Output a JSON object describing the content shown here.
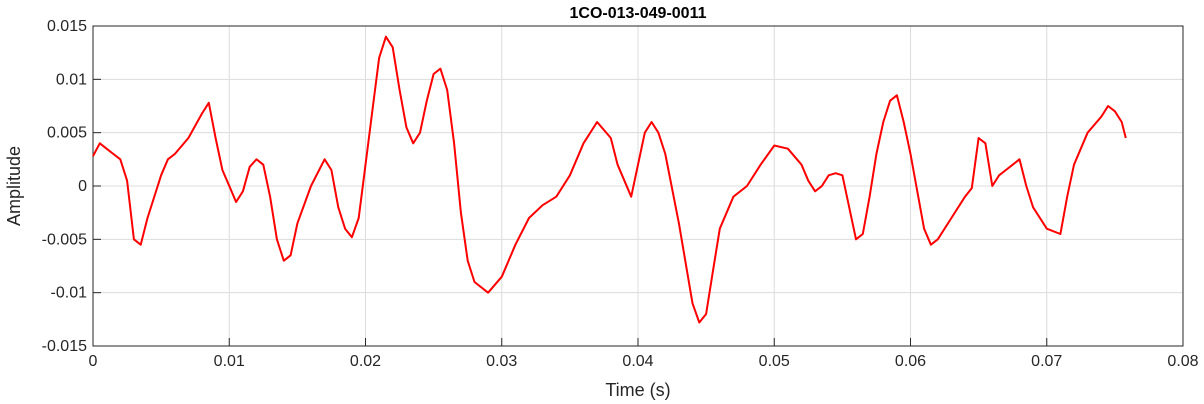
{
  "chart_data": {
    "type": "line",
    "title": "1CO-013-049-0011",
    "xlabel": "Time (s)",
    "ylabel": "Amplitude",
    "xlim": [
      0,
      0.08
    ],
    "ylim": [
      -0.015,
      0.015
    ],
    "grid": true,
    "x_ticks": [
      0,
      0.01,
      0.02,
      0.03,
      0.04,
      0.05,
      0.06,
      0.07,
      0.08
    ],
    "x_tick_labels": [
      "0",
      "0.01",
      "0.02",
      "0.03",
      "0.04",
      "0.05",
      "0.06",
      "0.07",
      "0.08"
    ],
    "y_ticks": [
      -0.015,
      -0.01,
      -0.005,
      0,
      0.005,
      0.01,
      0.015
    ],
    "y_tick_labels": [
      "-0.015",
      "-0.01",
      "-0.005",
      "0",
      "0.005",
      "0.01",
      "0.015"
    ],
    "colors": {
      "series": "#ff0000",
      "grid": "#dcdcdc",
      "axis": "#262626"
    },
    "series": [
      {
        "x": [
          0,
          0.0005,
          0.001,
          0.0015,
          0.002,
          0.0025,
          0.003,
          0.0035,
          0.004,
          0.0045,
          0.005,
          0.0055,
          0.006,
          0.007,
          0.008,
          0.0085,
          0.009,
          0.0095,
          0.01,
          0.0105,
          0.011,
          0.0115,
          0.012,
          0.0125,
          0.013,
          0.0135,
          0.014,
          0.0145,
          0.015,
          0.016,
          0.017,
          0.0175,
          0.018,
          0.0185,
          0.019,
          0.0195,
          0.02,
          0.0205,
          0.021,
          0.0215,
          0.022,
          0.0225,
          0.023,
          0.0235,
          0.024,
          0.0245,
          0.025,
          0.0255,
          0.026,
          0.0265,
          0.027,
          0.0275,
          0.028,
          0.029,
          0.03,
          0.031,
          0.032,
          0.033,
          0.034,
          0.035,
          0.036,
          0.037,
          0.038,
          0.0385,
          0.039,
          0.0395,
          0.04,
          0.0405,
          0.041,
          0.0415,
          0.042,
          0.043,
          0.044,
          0.0445,
          0.045,
          0.0455,
          0.046,
          0.047,
          0.048,
          0.049,
          0.05,
          0.051,
          0.052,
          0.0525,
          0.053,
          0.0535,
          0.054,
          0.0545,
          0.055,
          0.0555,
          0.056,
          0.0565,
          0.057,
          0.0575,
          0.058,
          0.0585,
          0.059,
          0.0595,
          0.06,
          0.061,
          0.0615,
          0.062,
          0.063,
          0.064,
          0.0645,
          0.065,
          0.0655,
          0.066,
          0.0665,
          0.067,
          0.0675,
          0.068,
          0.0685,
          0.069,
          0.07,
          0.071,
          0.0715,
          0.072,
          0.073,
          0.074,
          0.0745,
          0.075,
          0.0755,
          0.0758
        ],
        "values": [
          0.0028,
          0.004,
          0.0035,
          0.003,
          0.0025,
          0.0005,
          -0.005,
          -0.0055,
          -0.003,
          -0.001,
          0.001,
          0.0025,
          0.003,
          0.0045,
          0.0068,
          0.0078,
          0.0045,
          0.0015,
          0.0,
          -0.0015,
          -0.0005,
          0.0018,
          0.0025,
          0.002,
          -0.001,
          -0.005,
          -0.007,
          -0.0065,
          -0.0035,
          0.0,
          0.0025,
          0.0015,
          -0.002,
          -0.004,
          -0.0048,
          -0.003,
          0.002,
          0.007,
          0.012,
          0.014,
          0.013,
          0.009,
          0.0055,
          0.004,
          0.005,
          0.008,
          0.0105,
          0.011,
          0.009,
          0.004,
          -0.0025,
          -0.007,
          -0.009,
          -0.01,
          -0.0085,
          -0.0055,
          -0.003,
          -0.0018,
          -0.001,
          0.001,
          0.004,
          0.006,
          0.0045,
          0.002,
          0.0005,
          -0.001,
          0.002,
          0.005,
          0.006,
          0.005,
          0.003,
          -0.0035,
          -0.011,
          -0.0128,
          -0.012,
          -0.008,
          -0.004,
          -0.001,
          0.0,
          0.002,
          0.0038,
          0.0035,
          0.002,
          0.0005,
          -0.0005,
          0.0,
          0.001,
          0.0012,
          0.001,
          -0.002,
          -0.005,
          -0.0045,
          -0.001,
          0.003,
          0.006,
          0.008,
          0.0085,
          0.006,
          0.003,
          -0.004,
          -0.0055,
          -0.005,
          -0.003,
          -0.001,
          -0.0002,
          0.0045,
          0.004,
          0.0,
          0.001,
          0.0015,
          0.002,
          0.0025,
          0.0,
          -0.002,
          -0.004,
          -0.0045,
          -0.001,
          0.002,
          0.005,
          0.0065,
          0.0075,
          0.007,
          0.006,
          0.0045
        ]
      }
    ]
  }
}
